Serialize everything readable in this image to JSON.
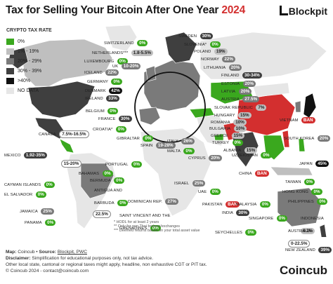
{
  "header": {
    "title": "Tax for Selling Your Bitcoin After One Year",
    "year": "2024",
    "brand": "Blockpit"
  },
  "legend": {
    "title": "CRYPTO TAX RATE",
    "items": [
      {
        "label": "0%",
        "color": "#3aa81e"
      },
      {
        "label": "1% - 19%",
        "color": "#bfbfbf"
      },
      {
        "label": "20% - 29%",
        "color": "#7a7a7a"
      },
      {
        "label": "30% - 39%",
        "color": "#3f3f3f"
      },
      {
        "label": ">40%",
        "color": "#111111"
      },
      {
        "label": "NO DATA",
        "color": "#e6e6e6"
      }
    ]
  },
  "countries": [
    {
      "name": "SWITZERLAND",
      "rate": "0%"
    },
    {
      "name": "NETHERLANDS***",
      "rate": "1.8-5.5%"
    },
    {
      "name": "LUXEMBOURG",
      "rate": "0%"
    },
    {
      "name": "ICELAND",
      "rate": "22%"
    },
    {
      "name": "GERMANY",
      "rate": "0%"
    },
    {
      "name": "DENMARK",
      "rate": "42%"
    },
    {
      "name": "IRELAND",
      "rate": "33%"
    },
    {
      "name": "BELGIUM",
      "rate": "0%"
    },
    {
      "name": "UK",
      "rate": "10-20%"
    },
    {
      "name": "SWEDEN",
      "rate": "30%"
    },
    {
      "name": "SLOVENIA*",
      "rate": "0%"
    },
    {
      "name": "POLAND",
      "rate": "19%"
    },
    {
      "name": "NORWAY",
      "rate": "22%"
    },
    {
      "name": "LITHUANIA",
      "rate": "20%"
    },
    {
      "name": "FINLAND",
      "rate": "30-34%"
    },
    {
      "name": "ESTONIA",
      "rate": "20%"
    },
    {
      "name": "LATVIA",
      "rate": "20%"
    },
    {
      "name": "AUSTRIA",
      "rate": "27.5%"
    },
    {
      "name": "SLOVAK REPUBLIC",
      "rate": "7%"
    },
    {
      "name": "HUNGARY",
      "rate": "15%"
    },
    {
      "name": "ROMANIA",
      "rate": "10%"
    },
    {
      "name": "BULGARIA",
      "rate": "10%"
    },
    {
      "name": "GREECE",
      "rate": "15%"
    },
    {
      "name": "TURKEY",
      "rate": "0%"
    },
    {
      "name": "ALBANIA",
      "rate": "15%"
    },
    {
      "name": "CYPRUS",
      "rate": "20%"
    },
    {
      "name": "ISRAEL",
      "rate": "25%"
    },
    {
      "name": "FRANCE",
      "rate": "30%"
    },
    {
      "name": "CROATIA*",
      "rate": "0%"
    },
    {
      "name": "GIBRALTAR",
      "rate": "0%"
    },
    {
      "name": "SPAIN",
      "rate": "19-28%"
    },
    {
      "name": "ITALY",
      "rate": "26%"
    },
    {
      "name": "MALTA",
      "rate": "0%"
    },
    {
      "name": "PORTUGAL",
      "rate": "0%"
    },
    {
      "name": "CANADA",
      "rate": "7.5%-16.5%"
    },
    {
      "name": "USA",
      "rate": "15-20%"
    },
    {
      "name": "MEXICO",
      "rate": "1.92-35%"
    },
    {
      "name": "CAYMAN ISLANDS",
      "rate": "0%"
    },
    {
      "name": "EL SALVADOR",
      "rate": "0%"
    },
    {
      "name": "JAMAICA",
      "rate": "25%"
    },
    {
      "name": "PANAMA",
      "rate": "0%"
    },
    {
      "name": "BAHAMAS",
      "rate": "0%"
    },
    {
      "name": "BERMUDA",
      "rate": "0%"
    },
    {
      "name": "ANTIGUA AND BARBUDA",
      "rate": "0%"
    },
    {
      "name": "DOMINICAN REP.",
      "rate": "27%"
    },
    {
      "name": "SAINT VINCENT AND THE GRENADINES",
      "rate": "0%"
    },
    {
      "name": "BRAZIL",
      "rate": "22.5%"
    },
    {
      "name": "UZBEKISTAN",
      "rate": "0%"
    },
    {
      "name": "UAE",
      "rate": "0%"
    },
    {
      "name": "PAKISTAN",
      "rate": "BAN"
    },
    {
      "name": "INDIA",
      "rate": "30%"
    },
    {
      "name": "SEYCHELLES",
      "rate": "0%"
    },
    {
      "name": "CHINA",
      "rate": "BAN"
    },
    {
      "name": "VIETNAM",
      "rate": "BAN"
    },
    {
      "name": "SOUTH KOREA",
      "rate": "20%"
    },
    {
      "name": "JAPAN",
      "rate": "45%"
    },
    {
      "name": "TAIWAN",
      "rate": "0%"
    },
    {
      "name": "HONG KONG",
      "rate": "0%"
    },
    {
      "name": "PHILIPPINES",
      "rate": "0%"
    },
    {
      "name": "MALAYSIA",
      "rate": "0%"
    },
    {
      "name": "SINGAPORE",
      "rate": "0%"
    },
    {
      "name": "INDONESIA",
      "rate": "0.2%"
    },
    {
      "name": "AUSTRALIA",
      "rate": "0-22.5%"
    },
    {
      "name": "NEW ZEALAND",
      "rate": "39%"
    }
  ],
  "map_notes": [
    "* HODL for at least 2 years",
    "** Only for non Thai brokers/exchanges",
    "*** Deemed returns based on your total asset value"
  ],
  "footer": {
    "map_label": "Map:",
    "map_value": "Coincub",
    "source_label": "Source:",
    "source_value": "Blockpit, PWC",
    "disclaimer_label": "Disclaimer:",
    "disclaimer_value": "Simplification for educational purposes only, not tax advice.",
    "line3": "Other local state, cantonal or regional taxes might apply, headline, non exhaustive CGT or PIT tax.",
    "line4": "© Coincub 2024 - contact@coincub.com"
  },
  "logo": "Coincub",
  "colors": {
    "zero": "#3aa81e",
    "low": "#bfbfbf",
    "mid": "#7a7a7a",
    "high": "#3f3f3f",
    "top": "#111111",
    "ban": "#d32f2f",
    "nodata": "#e6e6e6"
  }
}
